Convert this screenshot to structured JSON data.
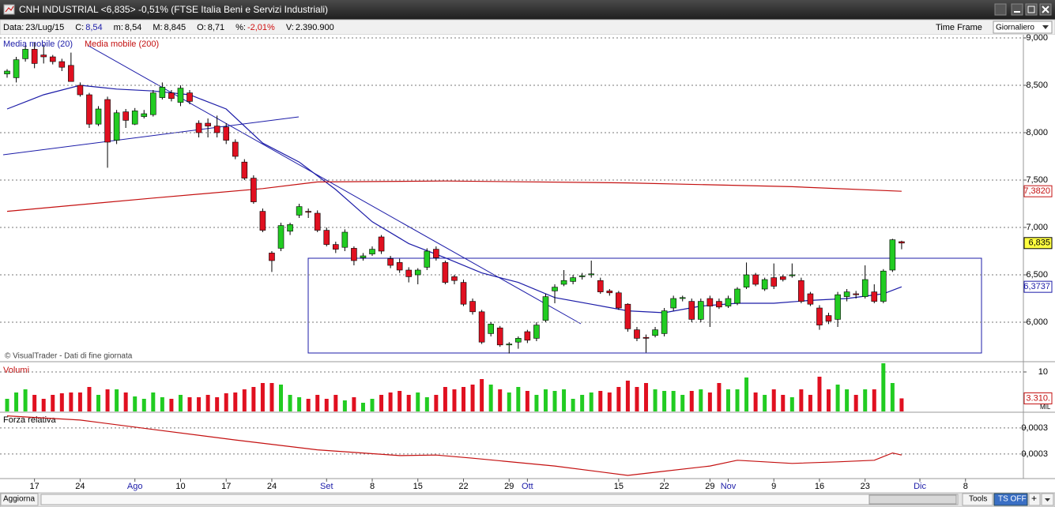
{
  "window": {
    "title": "CNH INDUSTRIAL <6,835> -0,51%  (FTSE Italia Beni e Servizi Industriali)"
  },
  "info_bar": {
    "items": [
      {
        "label": "Data:",
        "value": "23/Lug/15"
      },
      {
        "label": "C:",
        "value": "8,54"
      },
      {
        "label": "m:",
        "value": "8,54"
      },
      {
        "label": "M:",
        "value": "8,845"
      },
      {
        "label": "O:",
        "value": "8,71"
      },
      {
        "label": "%:",
        "value": "-2,01%"
      },
      {
        "label": "V:",
        "value": "2.390.900"
      }
    ],
    "time_frame": "Time Frame",
    "time_frame_value": "Giornaliero"
  },
  "footer": {
    "refresh": "Aggiorna",
    "tools": "Tools",
    "ts": "TS OFF",
    "plus": "+"
  },
  "chart_data": [
    {
      "type": "candlestick",
      "credit": "© VisualTrader - Dati di fine giornata",
      "up_color": "#22cc22",
      "down_color": "#e01020",
      "xlim": [
        -0.78,
        111.34
      ],
      "xticks": [
        {
          "value": 3,
          "label": "17"
        },
        {
          "value": 8,
          "label": "24"
        },
        {
          "value": 14,
          "label": "Ago"
        },
        {
          "value": 19,
          "label": "10"
        },
        {
          "value": 24,
          "label": "17"
        },
        {
          "value": 29,
          "label": "24"
        },
        {
          "value": 35,
          "label": "Set"
        },
        {
          "value": 40,
          "label": "8"
        },
        {
          "value": 45,
          "label": "15"
        },
        {
          "value": 50,
          "label": "22"
        },
        {
          "value": 55,
          "label": "29"
        },
        {
          "value": 57,
          "label": "Ott"
        },
        {
          "value": 67,
          "label": "15"
        },
        {
          "value": 72,
          "label": "22"
        },
        {
          "value": 77,
          "label": "29"
        },
        {
          "value": 79,
          "label": "Nov"
        },
        {
          "value": 84,
          "label": "9"
        },
        {
          "value": 89,
          "label": "16"
        },
        {
          "value": 94,
          "label": "23"
        },
        {
          "value": 100,
          "label": "Dic"
        },
        {
          "value": 105,
          "label": "8"
        }
      ],
      "ylim": [
        5.6,
        9.05
      ],
      "yticks": [
        {
          "value": 9,
          "label": "9,000"
        },
        {
          "value": 8.5,
          "label": "8,500"
        },
        {
          "value": 8,
          "label": "8,000"
        },
        {
          "value": 7.5,
          "label": "7,500"
        },
        {
          "value": 7,
          "label": "7,000"
        },
        {
          "value": 6.5,
          "label": "6,500"
        },
        {
          "value": 6,
          "label": "6,000"
        }
      ],
      "grid": true,
      "x": [
        0,
        1,
        2,
        3,
        4,
        5,
        6,
        7,
        8,
        9,
        10,
        11,
        12,
        13,
        14,
        15,
        16,
        17,
        18,
        19,
        20,
        21,
        22,
        23,
        24,
        25,
        26,
        27,
        28,
        29,
        30,
        31,
        32,
        33,
        34,
        35,
        36,
        37,
        38,
        39,
        40,
        41,
        42,
        43,
        44,
        45,
        46,
        47,
        48,
        49,
        50,
        51,
        52,
        53,
        54,
        55,
        56,
        57,
        58,
        59,
        60,
        61,
        62,
        63,
        64,
        65,
        66,
        67,
        68,
        69,
        70,
        71,
        72,
        73,
        74,
        75,
        76,
        77,
        78,
        79,
        80,
        81,
        82,
        83,
        84,
        85,
        86,
        87,
        88,
        89,
        90,
        91,
        92,
        93,
        94,
        95,
        96,
        97,
        98
      ],
      "ohlc": [
        [
          8.62,
          8.67,
          8.58,
          8.65
        ],
        [
          8.58,
          8.8,
          8.53,
          8.77
        ],
        [
          8.78,
          8.92,
          8.75,
          8.88
        ],
        [
          8.88,
          8.95,
          8.68,
          8.73
        ],
        [
          8.82,
          8.93,
          8.73,
          8.8
        ],
        [
          8.8,
          8.82,
          8.72,
          8.75
        ],
        [
          8.75,
          8.78,
          8.65,
          8.69
        ],
        [
          8.71,
          8.845,
          8.54,
          8.54
        ],
        [
          8.5,
          8.53,
          8.38,
          8.4
        ],
        [
          8.4,
          8.42,
          8.05,
          8.09
        ],
        [
          8.09,
          8.28,
          8.07,
          8.25
        ],
        [
          8.35,
          8.38,
          7.63,
          7.9
        ],
        [
          7.92,
          8.24,
          7.88,
          8.21
        ],
        [
          8.22,
          8.25,
          8.05,
          8.13
        ],
        [
          8.09,
          8.26,
          8.08,
          8.23
        ],
        [
          8.17,
          8.24,
          8.15,
          8.2
        ],
        [
          8.19,
          8.45,
          8.17,
          8.42
        ],
        [
          8.37,
          8.53,
          8.35,
          8.48
        ],
        [
          8.42,
          8.45,
          8.33,
          8.36
        ],
        [
          8.32,
          8.5,
          8.28,
          8.47
        ],
        [
          8.42,
          8.45,
          8.3,
          8.33
        ],
        [
          8.1,
          8.13,
          7.95,
          8.0
        ],
        [
          8.1,
          8.15,
          7.95,
          8.07
        ],
        [
          8.07,
          8.18,
          7.95,
          8.0
        ],
        [
          8.06,
          8.1,
          7.88,
          7.92
        ],
        [
          7.9,
          7.93,
          7.72,
          7.75
        ],
        [
          7.69,
          7.72,
          7.5,
          7.52
        ],
        [
          7.52,
          7.55,
          7.25,
          7.27
        ],
        [
          7.17,
          7.2,
          6.95,
          6.97
        ],
        [
          6.73,
          6.75,
          6.53,
          6.65
        ],
        [
          6.78,
          7.05,
          6.75,
          7.02
        ],
        [
          6.96,
          7.05,
          6.92,
          7.03
        ],
        [
          7.13,
          7.25,
          7.1,
          7.22
        ],
        [
          7.17,
          7.2,
          7.1,
          7.16
        ],
        [
          7.15,
          7.18,
          6.95,
          6.97
        ],
        [
          6.97,
          7.0,
          6.8,
          6.82
        ],
        [
          6.82,
          6.85,
          6.73,
          6.77
        ],
        [
          6.79,
          6.98,
          6.75,
          6.95
        ],
        [
          6.78,
          6.8,
          6.6,
          6.65
        ],
        [
          6.68,
          6.73,
          6.65,
          6.7
        ],
        [
          6.72,
          6.8,
          6.7,
          6.77
        ],
        [
          6.9,
          6.92,
          6.72,
          6.75
        ],
        [
          6.67,
          6.7,
          6.57,
          6.6
        ],
        [
          6.63,
          6.67,
          6.52,
          6.55
        ],
        [
          6.55,
          6.58,
          6.42,
          6.48
        ],
        [
          6.5,
          6.57,
          6.4,
          6.55
        ],
        [
          6.58,
          6.78,
          6.55,
          6.75
        ],
        [
          6.77,
          6.8,
          6.65,
          6.68
        ],
        [
          6.63,
          6.65,
          6.4,
          6.42
        ],
        [
          6.48,
          6.5,
          6.4,
          6.44
        ],
        [
          6.42,
          6.45,
          6.17,
          6.19
        ],
        [
          6.22,
          6.25,
          6.08,
          6.11
        ],
        [
          6.11,
          6.13,
          5.77,
          5.79
        ],
        [
          5.88,
          6.0,
          5.85,
          5.98
        ],
        [
          5.94,
          5.96,
          5.74,
          5.76
        ],
        [
          5.76,
          5.79,
          5.67,
          5.77
        ],
        [
          5.79,
          5.85,
          5.72,
          5.83
        ],
        [
          5.9,
          5.92,
          5.78,
          5.81
        ],
        [
          5.83,
          6.0,
          5.8,
          5.97
        ],
        [
          6.02,
          6.3,
          6.0,
          6.27
        ],
        [
          6.33,
          6.4,
          6.2,
          6.37
        ],
        [
          6.4,
          6.55,
          6.38,
          6.44
        ],
        [
          6.43,
          6.5,
          6.4,
          6.47
        ],
        [
          6.48,
          6.52,
          6.45,
          6.49
        ],
        [
          6.5,
          6.65,
          6.47,
          6.51
        ],
        [
          6.44,
          6.47,
          6.3,
          6.32
        ],
        [
          6.33,
          6.35,
          6.28,
          6.31
        ],
        [
          6.31,
          6.33,
          6.13,
          6.15
        ],
        [
          6.19,
          6.2,
          5.9,
          5.93
        ],
        [
          5.92,
          5.95,
          5.8,
          5.83
        ],
        [
          5.84,
          5.87,
          5.68,
          5.83
        ],
        [
          5.86,
          5.95,
          5.84,
          5.92
        ],
        [
          5.88,
          6.15,
          5.85,
          6.12
        ],
        [
          6.15,
          6.28,
          6.12,
          6.25
        ],
        [
          6.25,
          6.28,
          6.22,
          6.26
        ],
        [
          6.22,
          6.25,
          6.0,
          6.03
        ],
        [
          6.03,
          6.25,
          6.0,
          6.22
        ],
        [
          6.25,
          6.28,
          5.95,
          6.17
        ],
        [
          6.22,
          6.25,
          6.14,
          6.16
        ],
        [
          6.17,
          6.28,
          6.15,
          6.25
        ],
        [
          6.2,
          6.37,
          6.18,
          6.35
        ],
        [
          6.37,
          6.63,
          6.35,
          6.5
        ],
        [
          6.5,
          6.52,
          6.38,
          6.4
        ],
        [
          6.35,
          6.47,
          6.33,
          6.45
        ],
        [
          6.47,
          6.62,
          6.35,
          6.38
        ],
        [
          6.48,
          6.5,
          6.43,
          6.45
        ],
        [
          6.49,
          6.62,
          6.47,
          6.5
        ],
        [
          6.44,
          6.47,
          6.2,
          6.22
        ],
        [
          6.3,
          6.32,
          6.17,
          6.19
        ],
        [
          6.15,
          6.18,
          5.92,
          5.97
        ],
        [
          6.07,
          6.1,
          5.98,
          6.01
        ],
        [
          6.03,
          6.32,
          5.95,
          6.29
        ],
        [
          6.27,
          6.35,
          6.22,
          6.32
        ],
        [
          6.3,
          6.33,
          6.25,
          6.29
        ],
        [
          6.27,
          6.6,
          6.25,
          6.45
        ],
        [
          6.32,
          6.4,
          6.2,
          6.22
        ],
        [
          6.22,
          6.56,
          6.2,
          6.54
        ],
        [
          6.55,
          6.88,
          6.53,
          6.87
        ],
        [
          6.85,
          6.86,
          6.77,
          6.835
        ]
      ],
      "series": [
        {
          "name": "Media mobile (20)",
          "color": "#1c1ca8",
          "x": [
            0,
            4,
            8,
            12,
            16,
            20,
            24,
            28,
            32,
            36,
            40,
            44,
            48,
            52,
            56,
            60,
            64,
            68,
            72,
            76,
            80,
            84,
            88,
            92,
            96,
            98
          ],
          "values": [
            8.25,
            8.4,
            8.5,
            8.46,
            8.44,
            8.4,
            8.25,
            7.89,
            7.69,
            7.4,
            7.06,
            6.83,
            6.68,
            6.52,
            6.42,
            6.26,
            6.19,
            6.12,
            6.1,
            6.17,
            6.2,
            6.2,
            6.23,
            6.25,
            6.3,
            6.3737
          ]
        },
        {
          "name": "Media mobile (200)",
          "color": "#c41010",
          "x": [
            0,
            16,
            28,
            34,
            48,
            68,
            86,
            98
          ],
          "values": [
            7.17,
            7.31,
            7.41,
            7.48,
            7.49,
            7.47,
            7.43,
            7.382
          ]
        }
      ],
      "markers": [
        {
          "value": 7.382,
          "label": "7,3820",
          "color": "#c41010",
          "background": "#ffffff"
        },
        {
          "value": 6.835,
          "label": "6,835",
          "color": "#000000",
          "background": "#ffff40"
        },
        {
          "value": 6.3737,
          "label": "6,3737",
          "color": "#1c1ca8",
          "background": "#ffffff"
        }
      ]
    },
    {
      "type": "bar",
      "title": "Volumi",
      "unit": "MIL",
      "ylim": [
        0,
        12.2
      ],
      "yticks": [
        10
      ],
      "grid": true,
      "values": [
        3.2,
        4.8,
        5.6,
        4.2,
        3.2,
        4.2,
        4.6,
        4.8,
        4.8,
        6.2,
        4.2,
        5.6,
        5.6,
        4.8,
        3.8,
        3.2,
        4.8,
        3.6,
        3.2,
        4.2,
        3.6,
        3.6,
        4.2,
        3.6,
        4.6,
        4.8,
        5.6,
        6.2,
        7.2,
        7.2,
        6.8,
        4.2,
        3.6,
        3.2,
        4.2,
        3.2,
        4.2,
        2.8,
        3.6,
        2.2,
        3.2,
        4.2,
        4.8,
        5.2,
        4.2,
        4.8,
        3.6,
        4.2,
        6.2,
        5.6,
        6.2,
        6.8,
        8.2,
        6.8,
        5.6,
        4.8,
        6.2,
        5.2,
        4.2,
        5.6,
        5.2,
        5.6,
        3.2,
        4.2,
        4.8,
        5.2,
        4.8,
        6.2,
        7.8,
        6.2,
        7.2,
        5.6,
        5.2,
        5.2,
        4.2,
        5.2,
        5.6,
        4.8,
        7.2,
        5.6,
        5.6,
        8.6,
        4.8,
        4.2,
        5.6,
        4.2,
        3.6,
        5.6,
        4.2,
        8.8,
        5.6,
        6.8,
        5.6,
        4.2,
        5.6,
        5.6,
        12.2,
        7.2,
        3.31
      ],
      "markers": [
        {
          "value": 3.31,
          "label": "3.310.",
          "color": "#c41010",
          "background": "#ffffff"
        }
      ]
    },
    {
      "type": "line",
      "title": "Forza relativa",
      "color": "#c41010",
      "ylim": [
        0.000256,
        0.000377
      ],
      "yticks": [
        {
          "value": 0.00035,
          "label": "0,0003"
        },
        {
          "value": 0.0003,
          "label": "0,0003"
        }
      ],
      "grid": true,
      "x": [
        0,
        8,
        16,
        25,
        34,
        43,
        47,
        51,
        60,
        68,
        71,
        77,
        80,
        86,
        91,
        95,
        97,
        98
      ],
      "values": [
        0.000373,
        0.000365,
        0.000347,
        0.000327,
        0.000308,
        0.000297,
        0.000298,
        0.000292,
        0.000277,
        0.000259,
        0.000265,
        0.000277,
        0.000288,
        0.000282,
        0.000285,
        0.000288,
        0.000302,
        0.000298
      ]
    }
  ]
}
